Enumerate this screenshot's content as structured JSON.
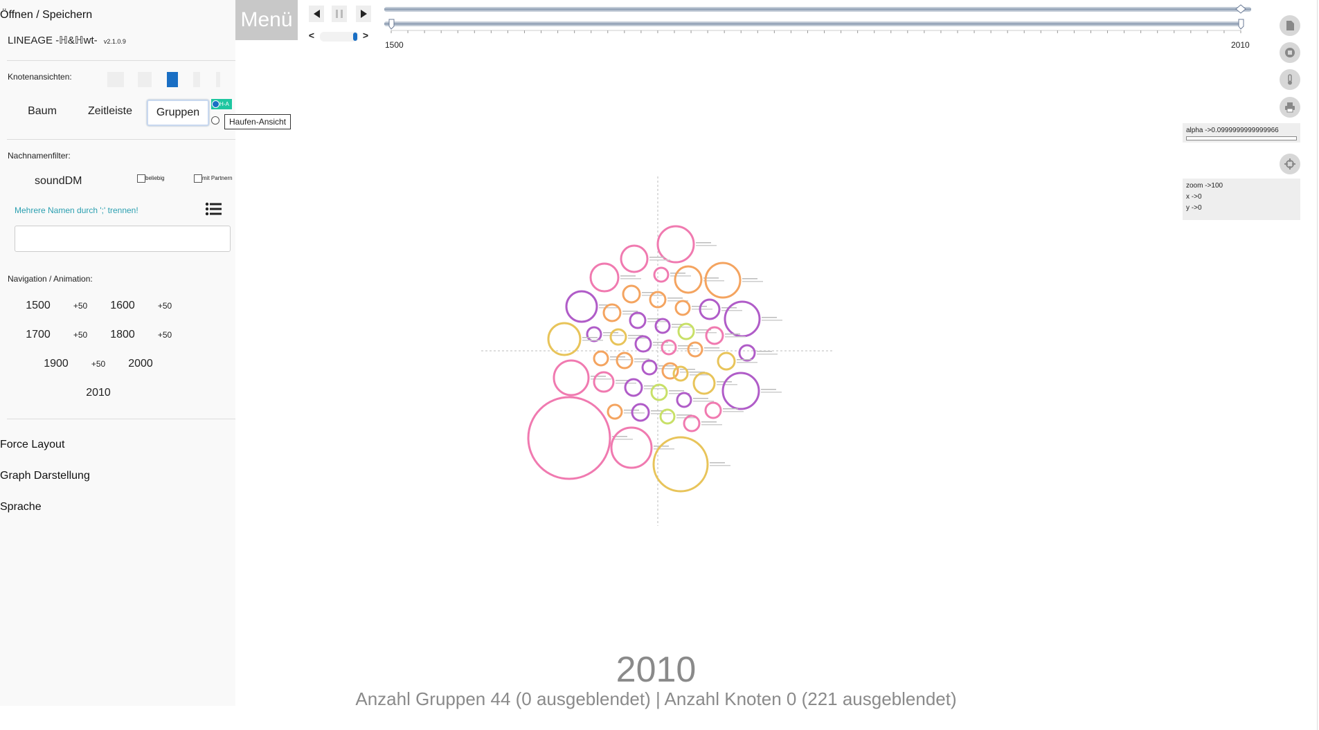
{
  "sidebar": {
    "open_save": "Öffnen / Speichern",
    "app_name": "LINEAGE -ℍ&ℍwt-",
    "version": "v2.1.0.9",
    "node_views_label": "Knotenansichten:",
    "tabs": [
      "Baum",
      "Zeitleiste",
      "Gruppen"
    ],
    "radio_label": "H-A",
    "surname_filter_label": "Nachnamenfilter:",
    "surname_value": "soundDM",
    "cb_any": "beliebig",
    "cb_partner": "mit Partnern",
    "hint": "Mehrere Namen durch ';' trennen!",
    "name_input_value": "",
    "nav_label": "Navigation / Animation:",
    "nav_years": [
      "1500",
      "1600",
      "1700",
      "1800",
      "1900",
      "2000",
      "2010"
    ],
    "nav_plus": "+50",
    "force_layout": "Force Layout",
    "graph_display": "Graph Darstellung",
    "language": "Sprache"
  },
  "tooltip": "Haufen-Ansicht",
  "toolbar": {
    "menu": "Menü",
    "prev": "<",
    "next": ">",
    "slider_start": "1500",
    "slider_end": "2010"
  },
  "right": {
    "alpha": "alpha ->0.0999999999999966",
    "zoom": "zoom ->100",
    "x": "x ->0",
    "y": "y ->0"
  },
  "icons": [
    "file-icon",
    "stop-icon",
    "thermometer-icon",
    "print-icon",
    "crosshair-icon"
  ],
  "footer": {
    "year": "2010",
    "stats": "Anzahl Gruppen 44 (0 ausgeblendet) | Anzahl Knoten 0 (221 ausgeblendet)"
  },
  "colors": {
    "accent": "#1a6fc4",
    "pink": "#f07ab0",
    "orange": "#f4a460",
    "purple": "#b05cc8",
    "yellow": "#e8c45a",
    "lime": "#c8e068"
  }
}
